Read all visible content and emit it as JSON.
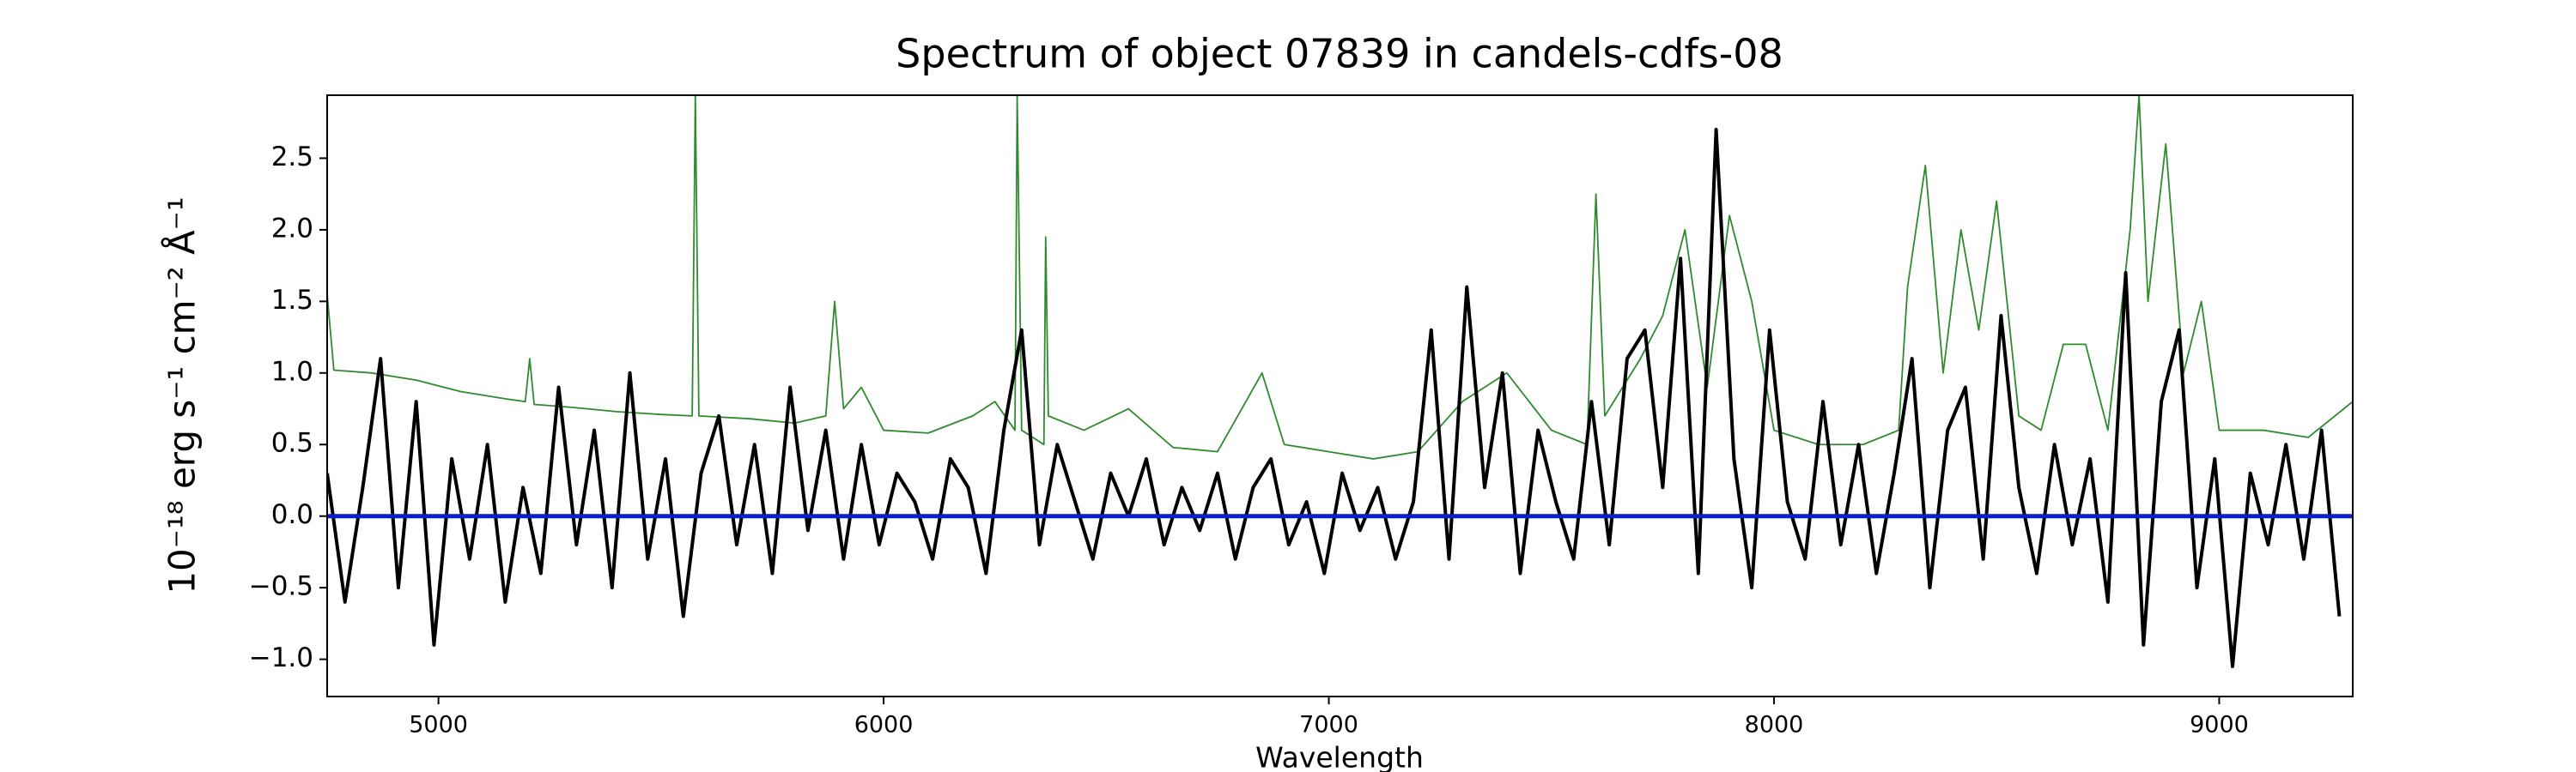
{
  "chart_data": {
    "type": "line",
    "title": "Spectrum of object 07839 in candels-cdfs-08",
    "xlabel": "Wavelength",
    "ylabel": "10⁻¹⁸ erg s⁻¹ cm⁻² Å⁻¹",
    "xlim": [
      4750,
      9300
    ],
    "ylim": [
      -1.26,
      2.94
    ],
    "xticks": [
      5000,
      6000,
      7000,
      8000,
      9000
    ],
    "yticks": [
      {
        "value": -1.0,
        "label": "−1.0"
      },
      {
        "value": -0.5,
        "label": "−0.5"
      },
      {
        "value": 0.0,
        "label": "0.0"
      },
      {
        "value": 0.5,
        "label": "0.5"
      },
      {
        "value": 1.0,
        "label": "1.0"
      },
      {
        "value": 1.5,
        "label": "1.5"
      },
      {
        "value": 2.0,
        "label": "2.0"
      },
      {
        "value": 2.5,
        "label": "2.5"
      }
    ],
    "hline": {
      "value": 0,
      "color": "#0a1ecc"
    },
    "series": [
      {
        "color": "#2e8b2e",
        "x": [
          4750,
          4765,
          4850,
          4950,
          5050,
          5150,
          5195,
          5205,
          5215,
          5300,
          5400,
          5500,
          5570,
          5577,
          5585,
          5700,
          5800,
          5870,
          5890,
          5910,
          5950,
          6000,
          6100,
          6200,
          6250,
          6295,
          6300,
          6310,
          6360,
          6364,
          6370,
          6450,
          6550,
          6650,
          6750,
          6850,
          6900,
          7000,
          7100,
          7200,
          7300,
          7400,
          7500,
          7580,
          7600,
          7620,
          7700,
          7750,
          7800,
          7850,
          7900,
          7950,
          8000,
          8100,
          8200,
          8280,
          8300,
          8340,
          8380,
          8420,
          8460,
          8500,
          8550,
          8600,
          8650,
          8700,
          8750,
          8800,
          8820,
          8840,
          8880,
          8920,
          8960,
          9000,
          9100,
          9200,
          9300
        ],
        "values": [
          1.55,
          1.02,
          1.0,
          0.95,
          0.87,
          0.82,
          0.8,
          1.1,
          0.78,
          0.76,
          0.73,
          0.71,
          0.7,
          2.94,
          0.7,
          0.68,
          0.65,
          0.7,
          1.5,
          0.75,
          0.9,
          0.6,
          0.58,
          0.7,
          0.8,
          0.6,
          2.94,
          0.6,
          0.5,
          1.95,
          0.7,
          0.6,
          0.75,
          0.48,
          0.45,
          1.0,
          0.5,
          0.45,
          0.4,
          0.45,
          0.8,
          1.0,
          0.6,
          0.5,
          2.25,
          0.7,
          1.1,
          1.4,
          2.0,
          0.9,
          2.1,
          1.5,
          0.6,
          0.5,
          0.5,
          0.6,
          1.6,
          2.45,
          1.0,
          2.0,
          1.3,
          2.2,
          0.7,
          0.6,
          1.2,
          1.2,
          0.6,
          2.0,
          2.94,
          1.5,
          2.6,
          1.0,
          1.5,
          0.6,
          0.6,
          0.55,
          0.8
        ]
      },
      {
        "color": "#000000",
        "x": [
          4750,
          4790,
          4830,
          4870,
          4910,
          4950,
          4990,
          5030,
          5070,
          5110,
          5150,
          5190,
          5230,
          5270,
          5310,
          5350,
          5390,
          5430,
          5470,
          5510,
          5550,
          5590,
          5630,
          5670,
          5710,
          5750,
          5790,
          5830,
          5870,
          5910,
          5950,
          5990,
          6030,
          6070,
          6110,
          6150,
          6190,
          6230,
          6270,
          6310,
          6350,
          6390,
          6430,
          6470,
          6510,
          6550,
          6590,
          6630,
          6670,
          6710,
          6750,
          6790,
          6830,
          6870,
          6910,
          6950,
          6990,
          7030,
          7070,
          7110,
          7150,
          7190,
          7230,
          7270,
          7310,
          7350,
          7390,
          7430,
          7470,
          7510,
          7550,
          7590,
          7630,
          7670,
          7710,
          7750,
          7790,
          7830,
          7870,
          7910,
          7950,
          7990,
          8030,
          8070,
          8110,
          8150,
          8190,
          8230,
          8270,
          8310,
          8350,
          8390,
          8430,
          8470,
          8510,
          8550,
          8590,
          8630,
          8670,
          8710,
          8750,
          8790,
          8830,
          8870,
          8910,
          8950,
          8990,
          9030,
          9070,
          9110,
          9150,
          9190,
          9230,
          9270
        ],
        "values": [
          0.3,
          -0.6,
          0.2,
          1.1,
          -0.5,
          0.8,
          -0.9,
          0.4,
          -0.3,
          0.5,
          -0.6,
          0.2,
          -0.4,
          0.9,
          -0.2,
          0.6,
          -0.5,
          1.0,
          -0.3,
          0.4,
          -0.7,
          0.3,
          0.7,
          -0.2,
          0.5,
          -0.4,
          0.9,
          -0.1,
          0.6,
          -0.3,
          0.5,
          -0.2,
          0.3,
          0.1,
          -0.3,
          0.4,
          0.2,
          -0.4,
          0.6,
          1.3,
          -0.2,
          0.5,
          0.1,
          -0.3,
          0.3,
          0.0,
          0.4,
          -0.2,
          0.2,
          -0.1,
          0.3,
          -0.3,
          0.2,
          0.4,
          -0.2,
          0.1,
          -0.4,
          0.3,
          -0.1,
          0.2,
          -0.3,
          0.1,
          1.3,
          -0.3,
          1.6,
          0.2,
          1.0,
          -0.4,
          0.6,
          0.1,
          -0.3,
          0.8,
          -0.2,
          1.1,
          1.3,
          0.2,
          1.8,
          -0.4,
          2.7,
          0.4,
          -0.5,
          1.3,
          0.1,
          -0.3,
          0.8,
          -0.2,
          0.5,
          -0.4,
          0.3,
          1.1,
          -0.5,
          0.6,
          0.9,
          -0.3,
          1.4,
          0.2,
          -0.4,
          0.5,
          -0.2,
          0.4,
          -0.6,
          1.7,
          -0.9,
          0.8,
          1.3,
          -0.5,
          0.4,
          -1.05,
          0.3,
          -0.2,
          0.5,
          -0.3,
          0.6,
          -0.7
        ]
      }
    ]
  }
}
